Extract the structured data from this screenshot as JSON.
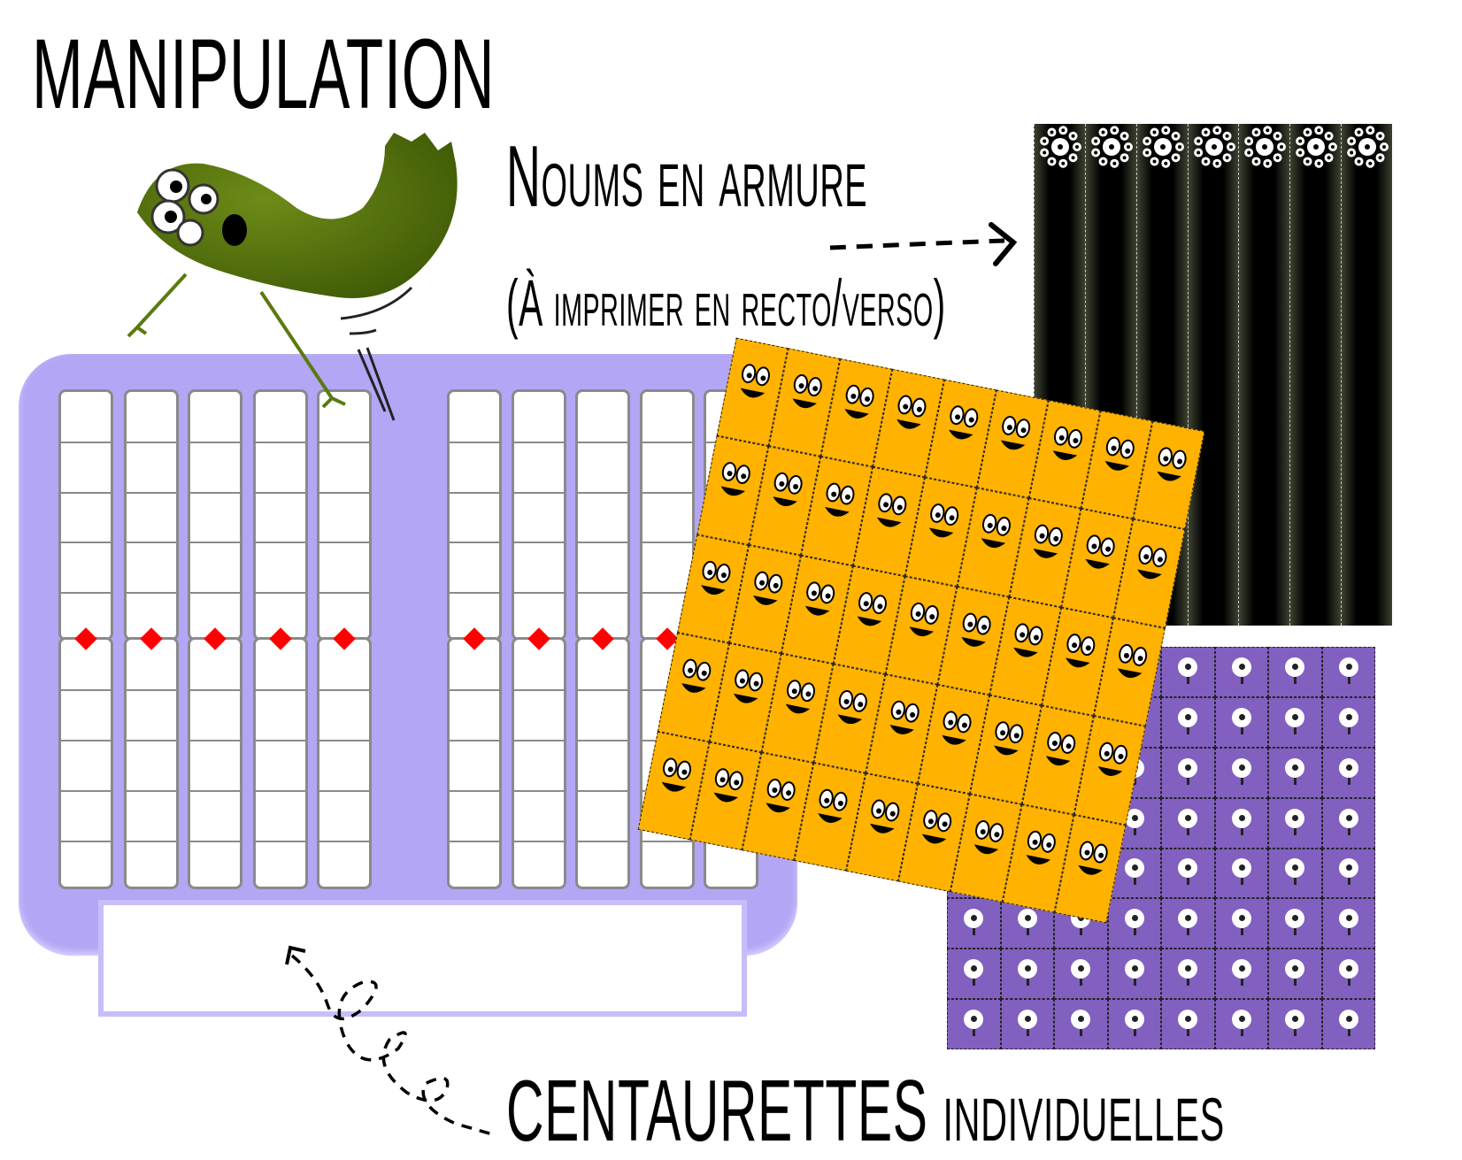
{
  "title": "MANIPULATION",
  "noums_label": "Noums en armure",
  "print_note": "(À imprimer en recto/verso)",
  "centaurettes_label": {
    "caps": "CENTAURETTES",
    "rest": " individuelles"
  },
  "colors": {
    "board": "#b3a6f5",
    "diamond": "#ff0000",
    "orange_cards": "#ffb200",
    "purple_cards": "#8160bf",
    "armor_cards": "#000000",
    "monster": "#5a7a10"
  },
  "icons": [
    "green-monster-illustration",
    "dashed-arrow-right",
    "dashed-swirl-arrow",
    "smiley-face",
    "one-eyed-monster",
    "flower-eyes"
  ]
}
